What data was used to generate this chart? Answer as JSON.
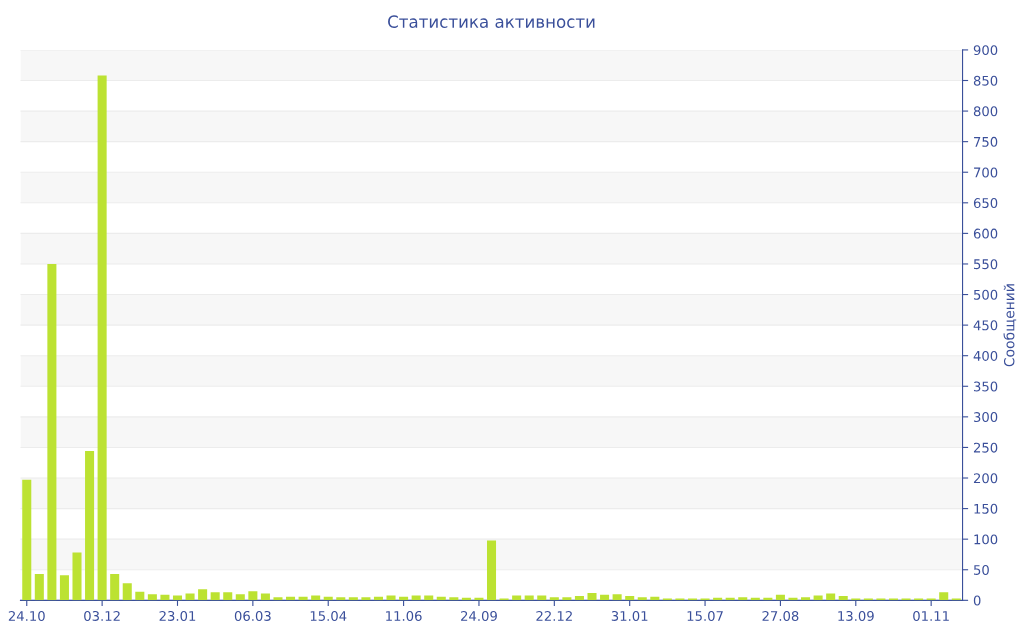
{
  "chart_data": {
    "type": "bar",
    "title": "Статистика активности",
    "ylabel": "Сообщений",
    "categories": [
      "24.10",
      null,
      null,
      null,
      null,
      null,
      "03.12",
      null,
      null,
      null,
      null,
      null,
      "23.01",
      null,
      null,
      null,
      null,
      null,
      "06.03",
      null,
      null,
      null,
      null,
      null,
      "15.04",
      null,
      null,
      null,
      null,
      null,
      "11.06",
      null,
      null,
      null,
      null,
      null,
      "24.09",
      null,
      null,
      null,
      null,
      null,
      "22.12",
      null,
      null,
      null,
      null,
      null,
      "31.01",
      null,
      null,
      null,
      null,
      null,
      "15.07",
      null,
      null,
      null,
      null,
      null,
      "27.08",
      null,
      null,
      null,
      null,
      null,
      "13.09",
      null,
      null,
      null,
      null,
      null,
      "01.11",
      null,
      null
    ],
    "values": [
      197,
      43,
      550,
      41,
      78,
      244,
      858,
      43,
      28,
      14,
      10,
      9,
      8,
      11,
      18,
      13,
      13,
      10,
      15,
      11,
      5,
      6,
      6,
      8,
      6,
      5,
      5,
      5,
      6,
      8,
      6,
      8,
      8,
      6,
      5,
      4,
      4,
      98,
      3,
      8,
      8,
      8,
      5,
      5,
      7,
      12,
      9,
      10,
      7,
      5,
      6,
      3,
      3,
      3,
      3,
      4,
      4,
      5,
      4,
      4,
      9,
      4,
      5,
      8,
      11,
      7,
      3,
      3,
      3,
      3,
      3,
      3,
      3,
      13,
      3
    ],
    "color": "#bce232",
    "ylim": [
      0,
      900
    ],
    "yticks": [
      0,
      50,
      100,
      150,
      200,
      250,
      300,
      350,
      400,
      450,
      500,
      550,
      600,
      650,
      700,
      750,
      800,
      850,
      900
    ],
    "grid": "y"
  }
}
